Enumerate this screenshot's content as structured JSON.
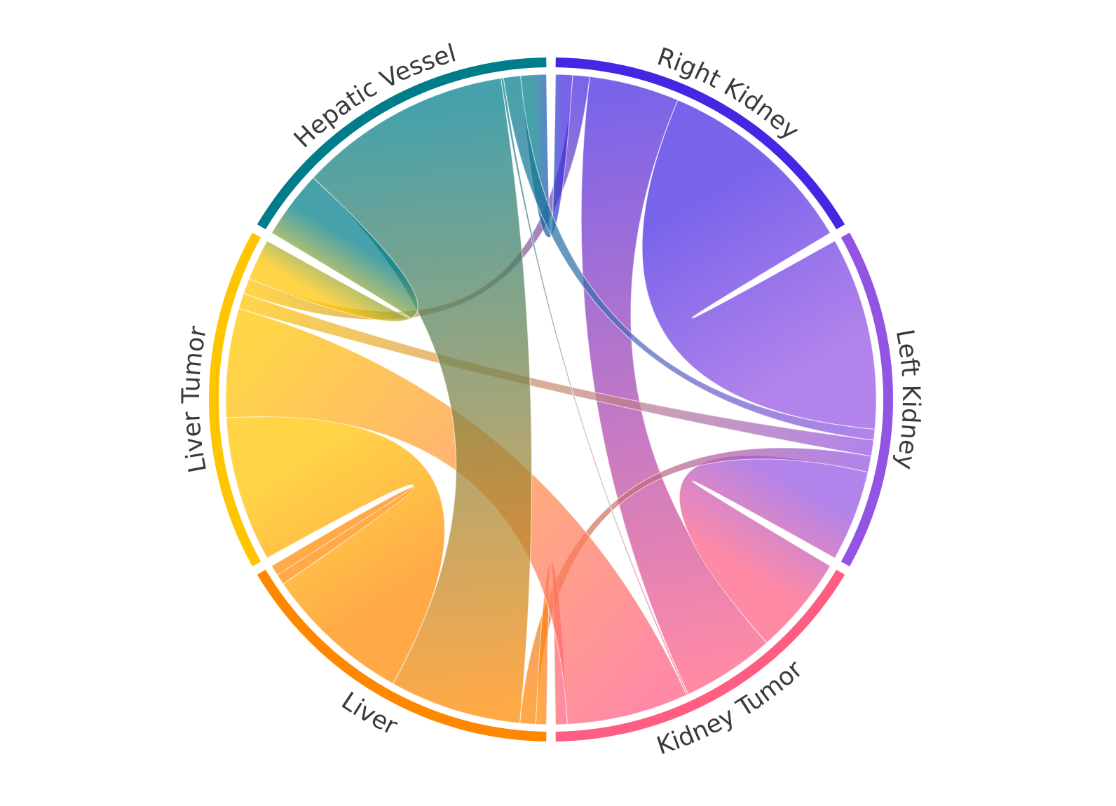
{
  "chart_data": {
    "type": "chord",
    "title": "",
    "groups": [
      {
        "id": "right_kidney",
        "name": "Right Kidney",
        "color": "#4527E3"
      },
      {
        "id": "left_kidney",
        "name": "Left Kidney",
        "color": "#9353E3"
      },
      {
        "id": "kidney_tumor",
        "name": "Kidney Tumor",
        "color": "#FF5D82"
      },
      {
        "id": "liver",
        "name": "Liver",
        "color": "#FF8800"
      },
      {
        "id": "liver_tumor",
        "name": "Liver Tumor",
        "color": "#FFC500"
      },
      {
        "id": "hepatic_vessel",
        "name": "Hepatic Vessel",
        "color": "#007D8A"
      }
    ],
    "group_totals_deg": {
      "right_kidney": 60,
      "left_kidney": 60,
      "kidney_tumor": 60,
      "liver": 60,
      "liver_tumor": 60,
      "hepatic_vessel": 60
    },
    "links": [
      {
        "source": "right_kidney",
        "target": "left_kidney",
        "value": 36
      },
      {
        "source": "right_kidney",
        "target": "kidney_tumor",
        "value": 16
      },
      {
        "source": "right_kidney",
        "target": "liver_tumor",
        "value": 3
      },
      {
        "source": "right_kidney",
        "target": "hepatic_vessel",
        "value": 3
      },
      {
        "source": "left_kidney",
        "target": "kidney_tumor",
        "value": 17
      },
      {
        "source": "left_kidney",
        "target": "liver_tumor",
        "value": 3
      },
      {
        "source": "left_kidney",
        "target": "liver",
        "value": 3
      },
      {
        "source": "left_kidney",
        "target": "hepatic_vessel",
        "value": 2
      },
      {
        "source": "kidney_tumor",
        "target": "liver",
        "value": 2
      },
      {
        "source": "kidney_tumor",
        "target": "liver_tumor",
        "value": 21
      },
      {
        "source": "kidney_tumor",
        "target": "hepatic_vessel",
        "value": 0.3
      },
      {
        "source": "liver",
        "target": "liver_tumor",
        "value": 28
      },
      {
        "source": "liver",
        "target": "hepatic_vessel",
        "value": 25
      },
      {
        "source": "liver_tumor",
        "target": "hepatic_vessel",
        "value": 8
      },
      {
        "source": "liver",
        "target": "liver",
        "value": 2
      }
    ]
  }
}
